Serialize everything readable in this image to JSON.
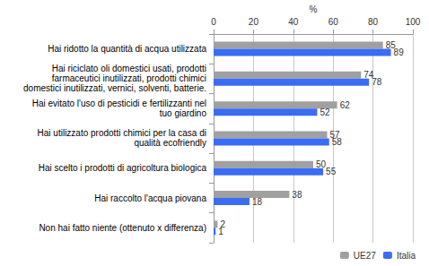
{
  "chart_data": {
    "type": "bar",
    "orientation": "horizontal",
    "xlabel": "%",
    "categories": [
      "Hai ridotto la quantità di acqua utilizzata",
      "Hai riciclato oli domestici usati, prodotti\nfarmaceutici inutilizzati, prodotti chimici\ndomestici inutilizzati, vernici, solventi, batterie.",
      "Hai evitato l'uso di pesticidi e fertilizzanti nel\ntuo giardino",
      "Hai utilizzato prodotti chimici per la casa di\nqualità ecofriendly",
      "Hai scelto i prodotti di agricoltura biologica",
      "Hai raccolto l'acqua piovana",
      "Non hai fatto niente (ottenuto x differenza)"
    ],
    "series": [
      {
        "name": "UE27",
        "color": "#a0a0a0",
        "values": [
          85,
          74,
          62,
          57,
          50,
          38,
          2
        ]
      },
      {
        "name": "Italia",
        "color": "#3a6cf4",
        "values": [
          89,
          78,
          52,
          58,
          55,
          18,
          1
        ]
      }
    ],
    "xlim": [
      0,
      100
    ],
    "xticks": [
      0,
      20,
      40,
      60,
      80,
      100
    ],
    "grid": true,
    "legend": "bottom",
    "data_labels": true
  }
}
